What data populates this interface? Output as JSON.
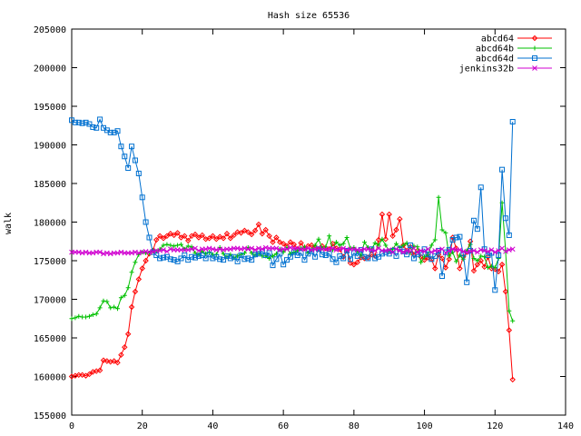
{
  "chart_data": {
    "type": "line",
    "title": "Hash size 65536",
    "xlabel": "",
    "ylabel": "walk",
    "xlim": [
      0,
      140
    ],
    "ylim": [
      155000,
      205000
    ],
    "x_ticks": [
      0,
      20,
      40,
      60,
      80,
      100,
      120,
      140
    ],
    "y_ticks": [
      155000,
      160000,
      165000,
      170000,
      175000,
      180000,
      185000,
      190000,
      195000,
      200000,
      205000
    ],
    "x_tick_labels": [
      "0",
      "20",
      "40",
      "60",
      "80",
      "100",
      "120",
      "140"
    ],
    "y_tick_labels": [
      "155000",
      "160000",
      "165000",
      "170000",
      "175000",
      "180000",
      "185000",
      "190000",
      "195000",
      "200000",
      "205000"
    ],
    "grid": false,
    "legend_position": "top-right",
    "x": [
      0,
      1,
      2,
      3,
      4,
      5,
      6,
      7,
      8,
      9,
      10,
      11,
      12,
      13,
      14,
      15,
      16,
      17,
      18,
      19,
      20,
      21,
      22,
      23,
      24,
      25,
      26,
      27,
      28,
      29,
      30,
      31,
      32,
      33,
      34,
      35,
      36,
      37,
      38,
      39,
      40,
      41,
      42,
      43,
      44,
      45,
      46,
      47,
      48,
      49,
      50,
      51,
      52,
      53,
      54,
      55,
      56,
      57,
      58,
      59,
      60,
      61,
      62,
      63,
      64,
      65,
      66,
      67,
      68,
      69,
      70,
      71,
      72,
      73,
      74,
      75,
      76,
      77,
      78,
      79,
      80,
      81,
      82,
      83,
      84,
      85,
      86,
      87,
      88,
      89,
      90,
      91,
      92,
      93,
      94,
      95,
      96,
      97,
      98,
      99,
      100,
      101,
      102,
      103,
      104,
      105,
      106,
      107,
      108,
      109,
      110,
      111,
      112,
      113,
      114,
      115,
      116,
      117,
      118,
      119,
      120,
      121,
      122,
      123,
      124,
      125
    ],
    "series": [
      {
        "name": "abcd64",
        "color": "#ff0000",
        "marker": "diamond",
        "values": [
          160000,
          160100,
          160200,
          160200,
          160100,
          160300,
          160600,
          160700,
          160800,
          162100,
          162000,
          161900,
          162000,
          161800,
          162800,
          163800,
          165500,
          169000,
          171000,
          172600,
          174000,
          175000,
          175900,
          176300,
          177700,
          178200,
          177900,
          178200,
          178500,
          178300,
          178600,
          178000,
          178200,
          177600,
          178200,
          178400,
          178000,
          178300,
          177800,
          177900,
          178200,
          177800,
          178100,
          177900,
          178500,
          177900,
          178300,
          178700,
          178600,
          178900,
          178700,
          178400,
          178900,
          179700,
          178500,
          179000,
          178200,
          177400,
          178000,
          177400,
          177200,
          176900,
          177400,
          177100,
          176500,
          177300,
          176600,
          176900,
          177000,
          176700,
          176500,
          176900,
          176600,
          176500,
          177200,
          176600,
          176500,
          175500,
          176300,
          174700,
          174500,
          174800,
          175400,
          175300,
          175400,
          175800,
          175600,
          177700,
          181000,
          177800,
          181000,
          178200,
          179000,
          180400,
          177000,
          176300,
          176800,
          175800,
          176300,
          175500,
          175100,
          175400,
          175200,
          174000,
          175800,
          175300,
          174100,
          175200,
          178000,
          176600,
          174000,
          175500,
          176100,
          177500,
          173700,
          174500,
          175000,
          174200,
          175500,
          174000,
          173900,
          173600,
          174500,
          171000,
          166000,
          159600
        ]
      },
      {
        "name": "abcd64b",
        "color": "#00c000",
        "marker": "plus",
        "values": [
          167500,
          167600,
          167800,
          167700,
          167700,
          167800,
          168000,
          168100,
          168900,
          169800,
          169700,
          168900,
          169000,
          168800,
          170200,
          170500,
          171500,
          173500,
          174800,
          175800,
          176100,
          176000,
          176000,
          176300,
          176200,
          176500,
          177000,
          177100,
          177000,
          176900,
          177000,
          177100,
          176500,
          176900,
          176800,
          176000,
          175800,
          176200,
          175900,
          176100,
          175800,
          175800,
          176700,
          175900,
          175500,
          175800,
          175400,
          175600,
          175800,
          176000,
          176700,
          176000,
          175700,
          175900,
          175600,
          175600,
          175300,
          175600,
          175900,
          176500,
          176100,
          176700,
          175900,
          176100,
          176300,
          176600,
          176800,
          176000,
          176400,
          177000,
          177800,
          176600,
          176800,
          178200,
          176400,
          177400,
          177000,
          177200,
          178000,
          176600,
          176700,
          176200,
          175700,
          177400,
          176700,
          176500,
          177300,
          177000,
          177800,
          177000,
          176300,
          176500,
          177200,
          176700,
          177000,
          177300,
          176000,
          176900,
          176800,
          174800,
          175500,
          175800,
          177000,
          177700,
          183200,
          179000,
          178600,
          175600,
          176100,
          174900,
          175700,
          175200,
          176300,
          177100,
          175300,
          175000,
          175600,
          175500,
          174100,
          174300,
          174100,
          175300,
          182500,
          176300,
          168500,
          167200
        ]
      },
      {
        "name": "abcd64d",
        "color": "#0070d0",
        "marker": "square",
        "values": [
          193200,
          192900,
          192900,
          192800,
          192900,
          192700,
          192300,
          192200,
          193300,
          192200,
          191900,
          191600,
          191600,
          191800,
          189800,
          188500,
          187000,
          189800,
          188000,
          186300,
          183200,
          180000,
          178000,
          176100,
          175700,
          175300,
          175400,
          175500,
          175200,
          175100,
          174900,
          175300,
          175700,
          175100,
          175500,
          175400,
          175600,
          175700,
          175300,
          175800,
          175300,
          175500,
          175200,
          175100,
          175600,
          175300,
          175500,
          174900,
          175700,
          175200,
          175300,
          175100,
          175800,
          175900,
          176200,
          175700,
          176000,
          174400,
          175200,
          175900,
          174500,
          175100,
          175500,
          176100,
          175700,
          176000,
          175100,
          175900,
          176200,
          175500,
          176500,
          175800,
          175700,
          175900,
          175200,
          174800,
          175600,
          175300,
          176300,
          175200,
          176000,
          175600,
          176400,
          175500,
          175300,
          176500,
          175300,
          175500,
          175900,
          176100,
          175900,
          176300,
          175600,
          176500,
          176200,
          175800,
          177000,
          175300,
          175800,
          176000,
          176500,
          175800,
          175200,
          175600,
          176300,
          173000,
          176100,
          176400,
          177700,
          178000,
          178100,
          175900,
          172200,
          176300,
          180200,
          179100,
          184500,
          176500,
          175700,
          176000,
          171200,
          175700,
          186800,
          180500,
          178300,
          193000
        ]
      },
      {
        "name": "jenkins32b",
        "color": "#d000d0",
        "marker": "cross",
        "values": [
          176100,
          176100,
          176100,
          176000,
          176100,
          176000,
          176000,
          176100,
          176100,
          175900,
          176000,
          175900,
          176000,
          176000,
          176100,
          176000,
          176000,
          176000,
          176100,
          176000,
          176100,
          176200,
          176100,
          176200,
          176300,
          176300,
          176400,
          176200,
          176500,
          176400,
          176400,
          176400,
          176400,
          176400,
          176500,
          176600,
          176300,
          176500,
          176500,
          176600,
          176500,
          176400,
          176500,
          176400,
          176500,
          176500,
          176600,
          176600,
          176500,
          176600,
          176500,
          176600,
          176400,
          176600,
          176500,
          176700,
          176600,
          176600,
          176600,
          176400,
          176500,
          176500,
          176700,
          176600,
          176600,
          176500,
          176500,
          176600,
          176400,
          176500,
          176600,
          176500,
          176500,
          176500,
          176600,
          176400,
          176500,
          176600,
          176400,
          176500,
          176500,
          176400,
          176400,
          176500,
          176500,
          176400,
          176300,
          176600,
          176300,
          176300,
          176400,
          176100,
          176500,
          176300,
          176100,
          176300,
          176200,
          176600,
          176100,
          176300,
          176200,
          176500,
          176100,
          176300,
          176300,
          176500,
          176000,
          176300,
          176500,
          176400,
          176400,
          176200,
          176100,
          176200,
          176300,
          176100,
          176400,
          176300,
          176200,
          176400,
          176100,
          176300,
          176600,
          176200,
          176400,
          176500
        ]
      }
    ]
  }
}
